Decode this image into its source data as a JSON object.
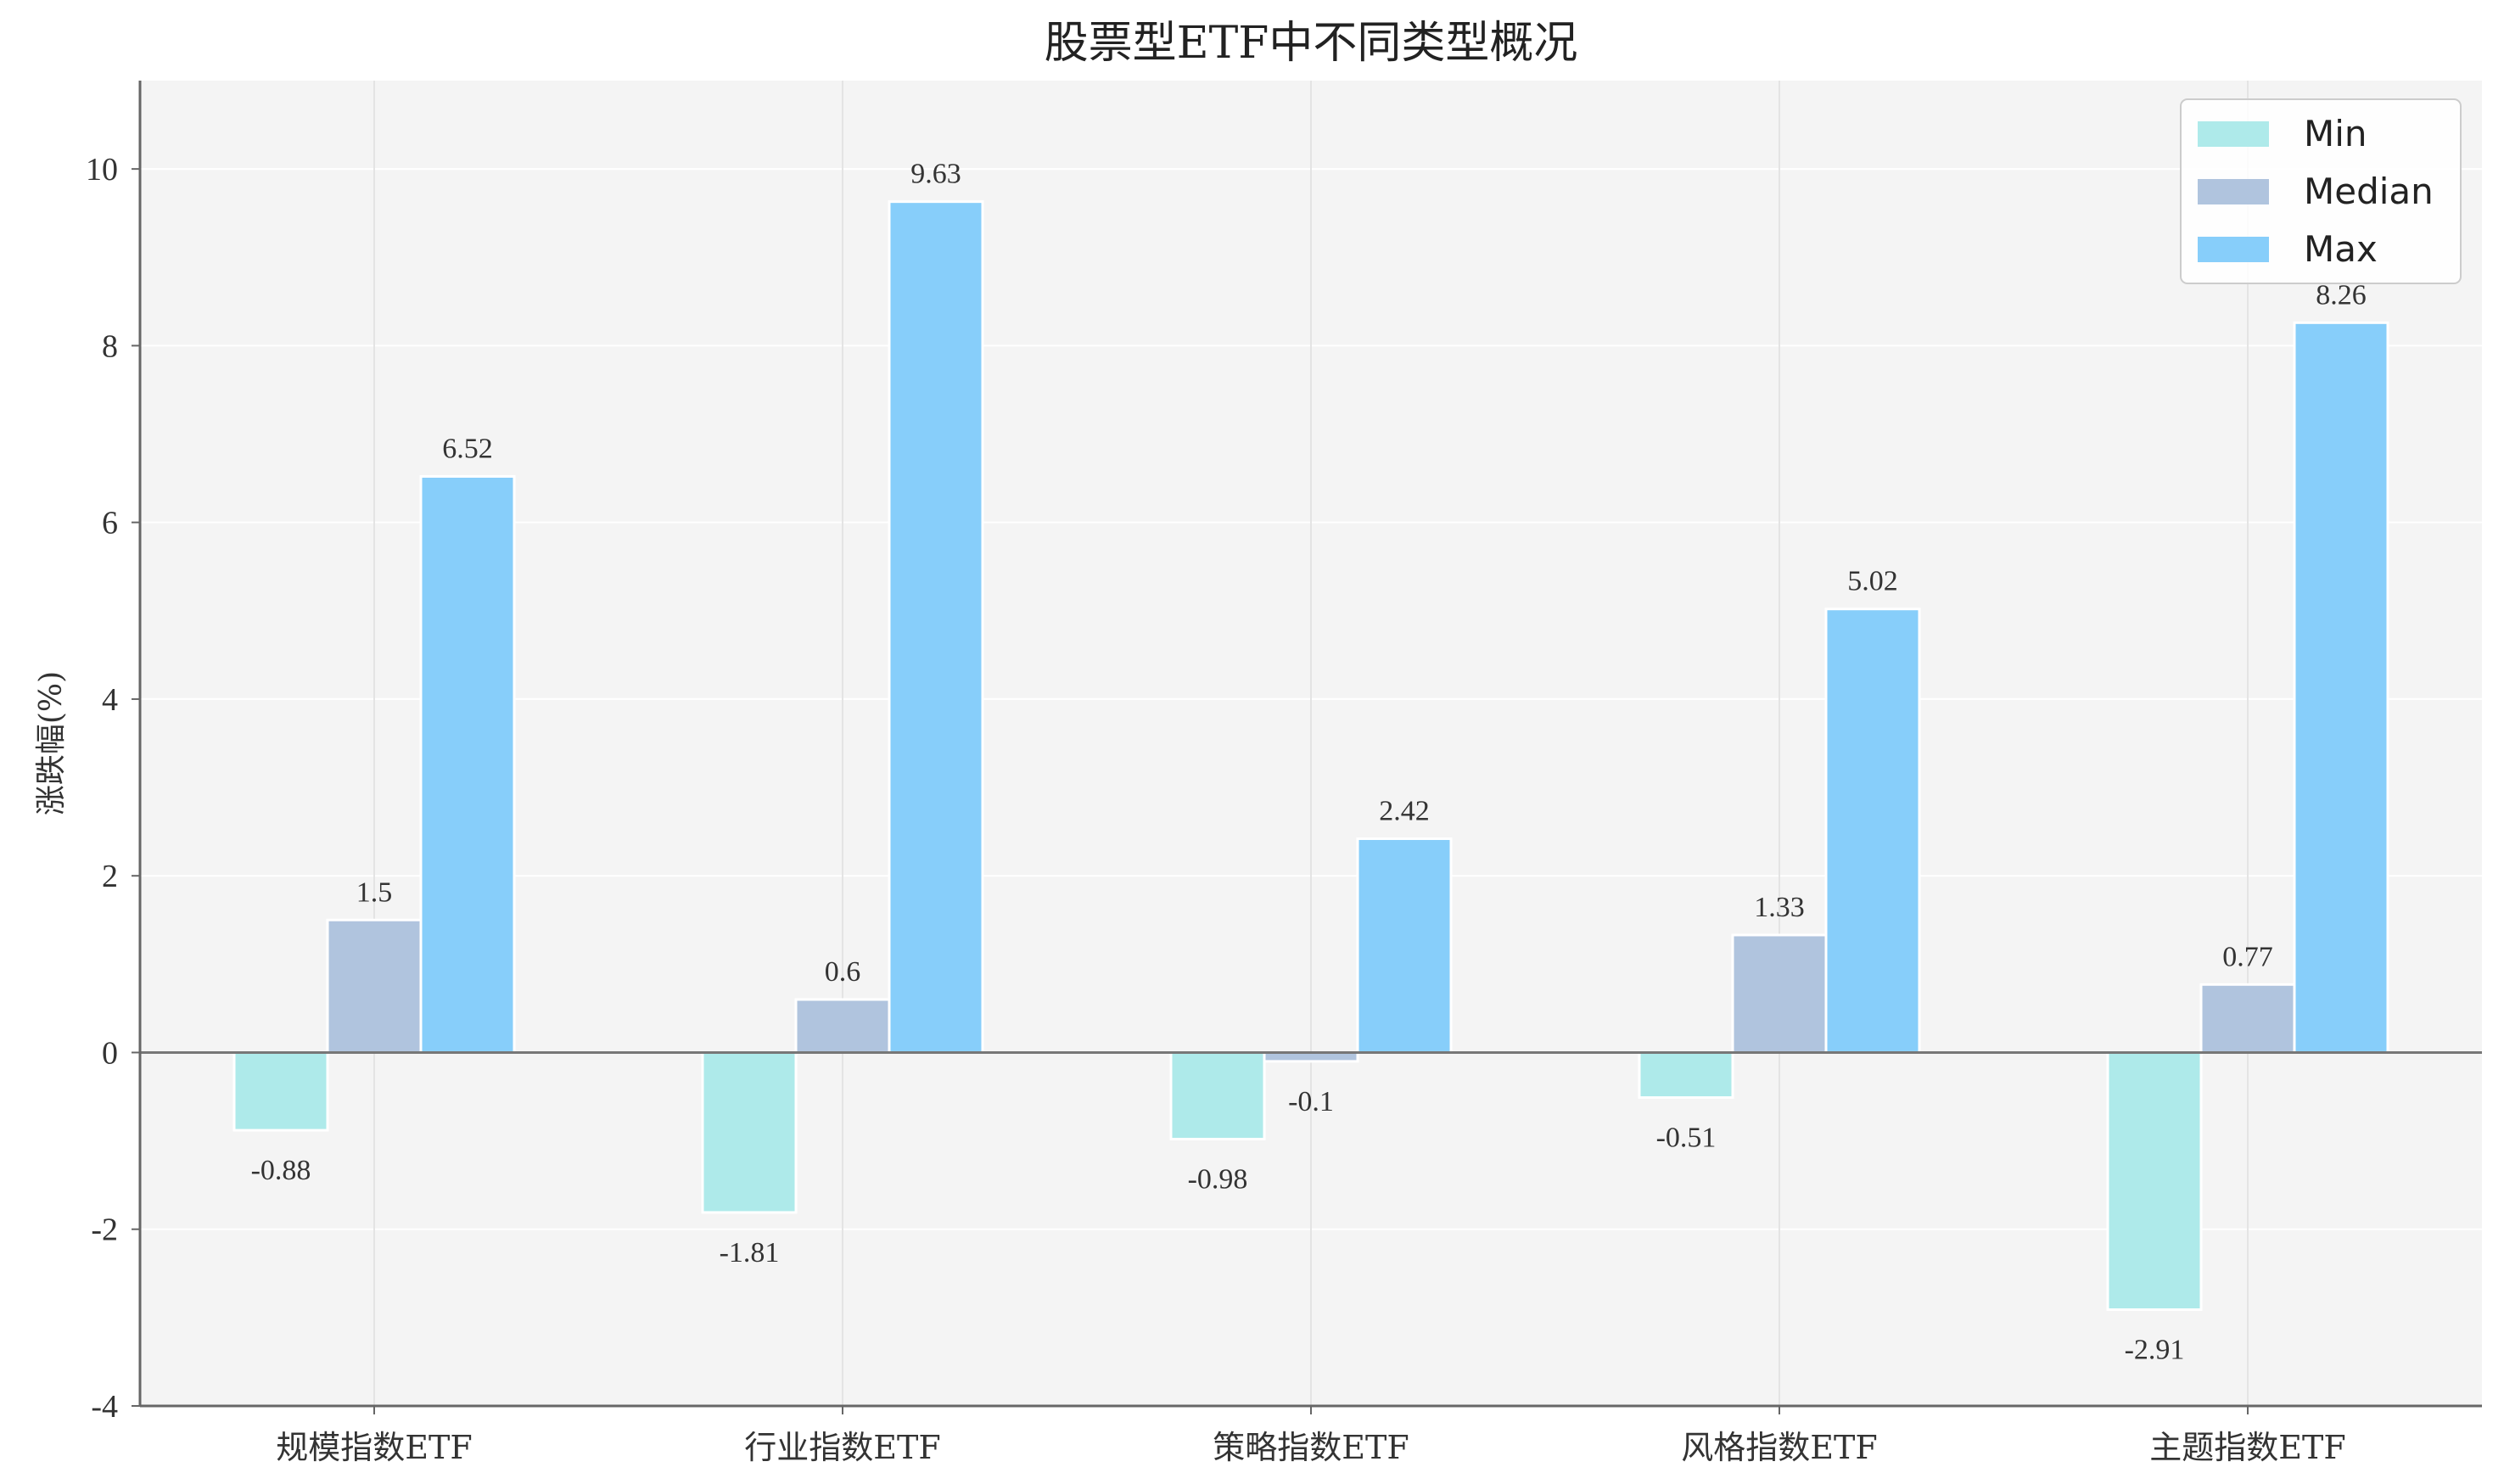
{
  "chart_data": {
    "type": "bar",
    "title": "股票型ETF中不同类型概况",
    "xlabel": "",
    "ylabel": "涨跌幅(%)",
    "ylim": [
      -4,
      11
    ],
    "yticks": [
      -4,
      -2,
      0,
      2,
      4,
      6,
      8,
      10
    ],
    "grid": true,
    "legend_position": "top-right",
    "categories": [
      "规模指数ETF",
      "行业指数ETF",
      "策略指数ETF",
      "风格指数ETF",
      "主题指数ETF"
    ],
    "series": [
      {
        "name": "Min",
        "color": "#aeeaea",
        "values": [
          -0.88,
          -1.81,
          -0.98,
          -0.51,
          -2.91
        ],
        "labels": [
          "-0.88",
          "-1.81",
          "-0.98",
          "-0.51",
          "-2.91"
        ]
      },
      {
        "name": "Median",
        "color": "#b0c4de",
        "values": [
          1.5,
          0.6,
          -0.1,
          1.33,
          0.77
        ],
        "labels": [
          "1.5",
          "0.6",
          "-0.1",
          "1.33",
          "0.77"
        ]
      },
      {
        "name": "Max",
        "color": "#87cefa",
        "values": [
          6.52,
          9.63,
          2.42,
          5.02,
          8.26
        ],
        "labels": [
          "6.52",
          "9.63",
          "2.42",
          "5.02",
          "8.26"
        ]
      }
    ],
    "colors": {
      "plot_background": "#f4f4f4",
      "grid": "#ffffff",
      "axis": "#666666",
      "zero_line": "#777777"
    }
  }
}
